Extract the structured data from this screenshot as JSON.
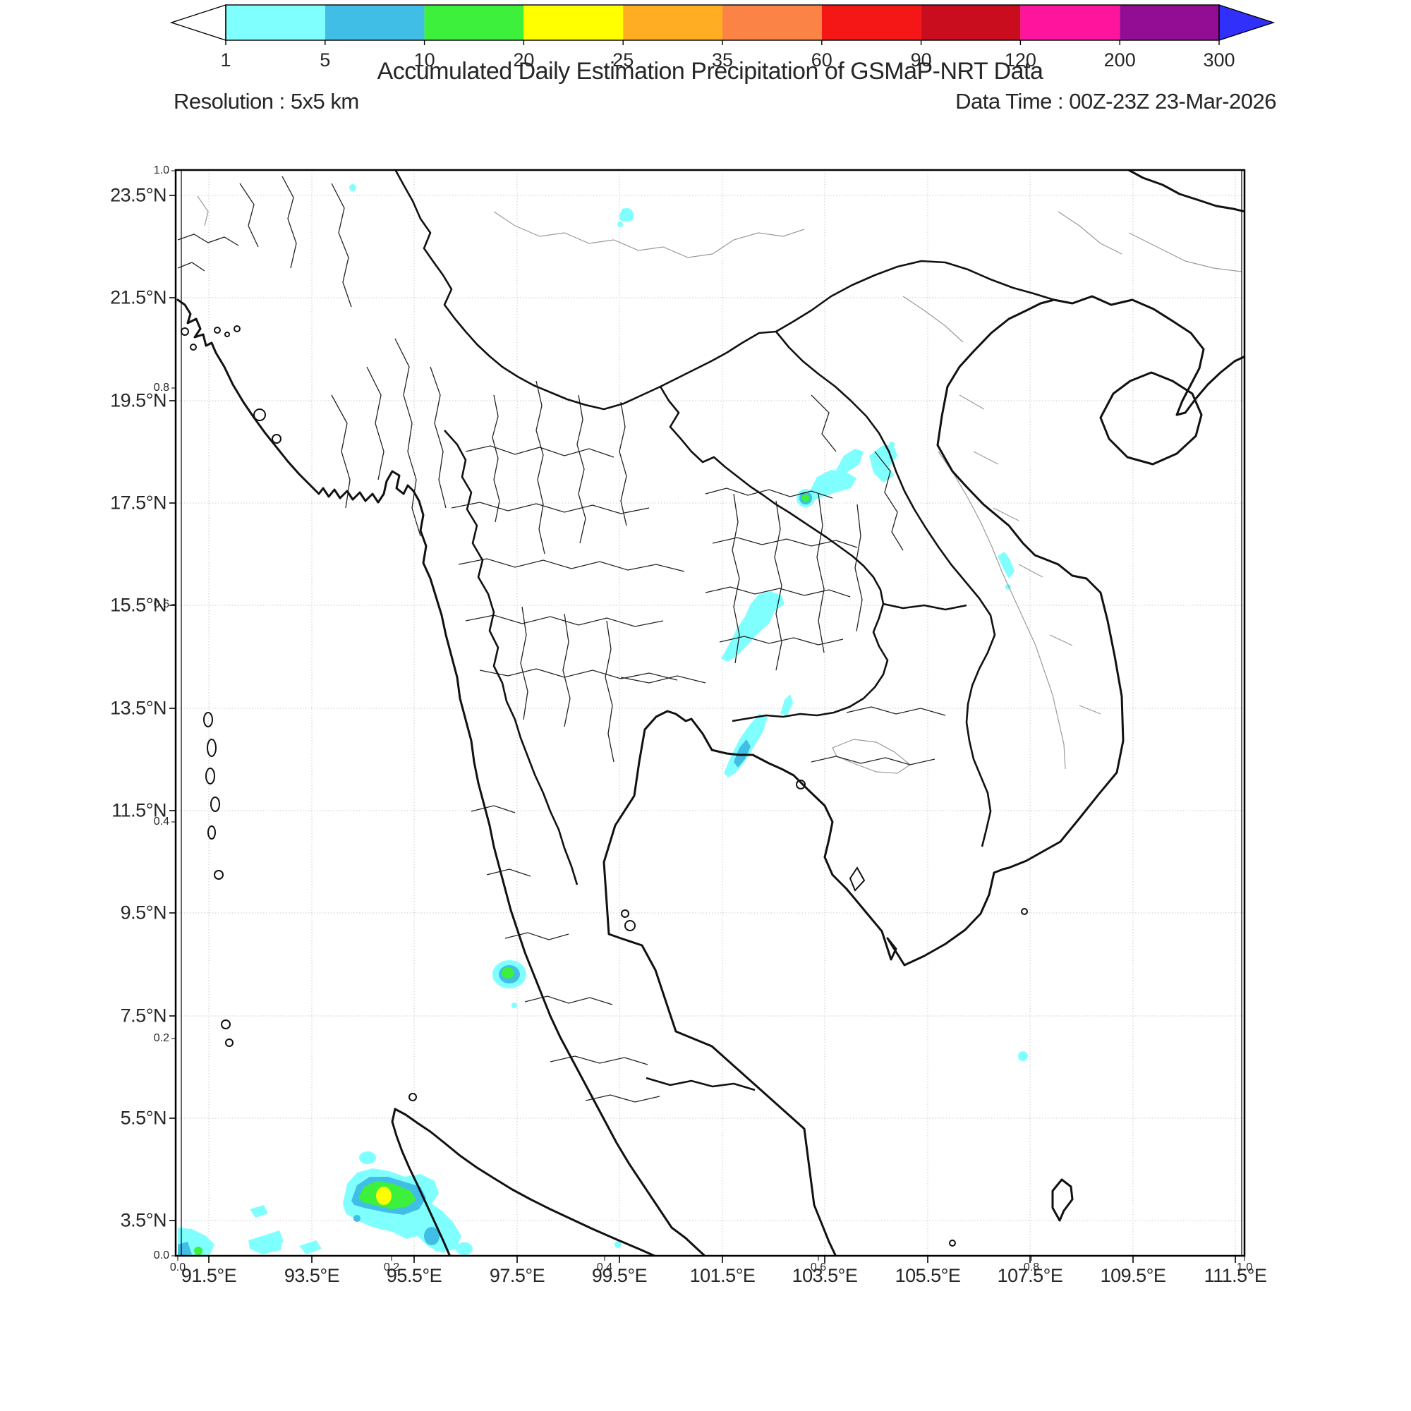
{
  "header": {
    "title": "Accumulated Daily Estimation Precipitation of GSMaP-NRT Data",
    "resolution_label": "Resolution : 5x5 km",
    "data_time_label": "Data Time : 00Z-23Z 23-Mar-2026"
  },
  "axes": {
    "lat_labels": [
      "23.5°N",
      "21.5°N",
      "19.5°N",
      "17.5°N",
      "15.5°N",
      "13.5°N",
      "11.5°N",
      "9.5°N",
      "7.5°N",
      "5.5°N",
      "3.5°N"
    ],
    "lon_labels": [
      "91.5°E",
      "93.5°E",
      "95.5°E",
      "97.5°E",
      "99.5°E",
      "101.5°E",
      "103.5°E",
      "105.5°E",
      "107.5°E",
      "109.5°E",
      "111.5°E"
    ],
    "inner_y_labels": [
      "1.0",
      "0.8",
      "0.6",
      "0.4",
      "0.2",
      "0.0"
    ],
    "inner_x_labels": [
      "0.0",
      "0.2",
      "0.4",
      "0.6",
      "0.8",
      "1.0"
    ]
  },
  "colorbar": {
    "tick_labels": [
      "1",
      "5",
      "10",
      "20",
      "25",
      "35",
      "60",
      "90",
      "120",
      "200",
      "300"
    ],
    "segment_colors": [
      "#80ffff",
      "#41bee6",
      "#3cf03c",
      "#ffff00",
      "#ffae23",
      "#fa8345",
      "#f51616",
      "#c90d1e",
      "#ff149e",
      "#920d93"
    ],
    "under_color": "#ffffff",
    "over_color": "#3030fa"
  },
  "chart_data": {
    "type": "heatmap",
    "title": "Accumulated Daily Estimation Precipitation of GSMaP-NRT Data",
    "resolution": "5x5 km",
    "data_time": "00Z-23Z 23-Mar-2026",
    "region": {
      "lon_range_deg_e": [
        90.9,
        111.7
      ],
      "lat_range_deg_n": [
        2.8,
        24.0
      ]
    },
    "color_levels": [
      1,
      5,
      10,
      20,
      25,
      35,
      60,
      90,
      120,
      200,
      300
    ],
    "precipitation_areas": [
      {
        "location": "Lao PDR near Mekong, approx 103.2-105.0E / 17.6-18.7N",
        "max_level": "10-20"
      },
      {
        "location": "Northeast Thailand plateau, approx 101.5-102.7E / 14.5-15.9N",
        "max_level": "1-5"
      },
      {
        "location": "Eastern Thailand-Cambodia border, approx 101.6-102.4E / 12.1-13.4N",
        "max_level": "5-10"
      },
      {
        "location": "Central Vietnam coast, approx 107E / 15.9-16.6N",
        "max_level": "1-5"
      },
      {
        "location": "Andaman Sea spot, approx 97.4E / 8.3N",
        "max_level": "10-20"
      },
      {
        "location": "Sea west of northern Sumatra, approx 94.1-96.4E / 2.8-4.7N",
        "max_level": "20-25"
      },
      {
        "location": "Southwest map corner, approx 90.9-91.7E / 2.8-3.6N",
        "max_level": "10-20"
      },
      {
        "location": "South China Sea spot, approx 107.4E / 6.7N",
        "max_level": "1-5"
      },
      {
        "location": "Small dots near 94.3E / 23.7N and 99.6E / 23.2N",
        "max_level": "1-5"
      }
    ]
  }
}
